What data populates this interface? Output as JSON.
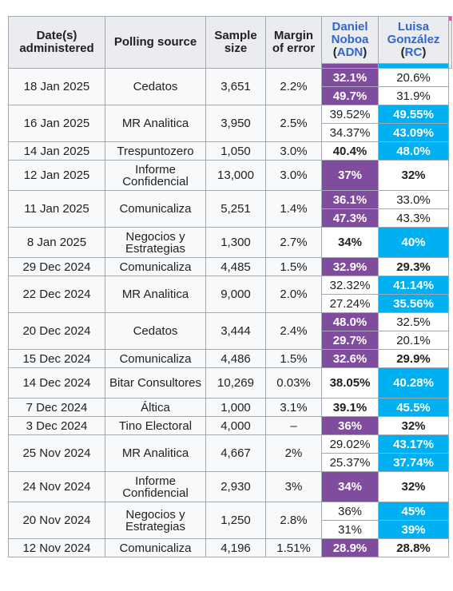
{
  "headers": {
    "date": "Date(s) administered",
    "source": "Polling source",
    "sample": "Sample size",
    "margin": "Margin of error",
    "cand1_name": "Daniel Noboa",
    "cand1_party": "ADN",
    "cand2_name": "Luisa González",
    "cand2_party": "RC"
  },
  "colors": {
    "adn": "#804c9e",
    "rc": "#00b0f0"
  },
  "rows": [
    {
      "date": "18 Jan 2025",
      "source": "Cedatos",
      "sample": "3,651",
      "moe": "2.2%",
      "results": [
        {
          "adn": "32.1%",
          "rc": "20.6%",
          "winner": "adn"
        },
        {
          "adn": "49.7%",
          "rc": "31.9%",
          "winner": "adn"
        }
      ]
    },
    {
      "date": "16 Jan 2025",
      "source": "MR Analitica",
      "sample": "3,950",
      "moe": "2.5%",
      "results": [
        {
          "adn": "39.52%",
          "rc": "49.55%",
          "winner": "rc"
        },
        {
          "adn": "34.37%",
          "rc": "43.09%",
          "winner": "rc"
        }
      ]
    },
    {
      "date": "14 Jan 2025",
      "source": "Trespuntozero",
      "sample": "1,050",
      "moe": "3.0%",
      "results": [
        {
          "adn": "40.4%",
          "rc": "48.0%",
          "winner": "rc"
        }
      ]
    },
    {
      "date": "12 Jan 2025",
      "source": "Informe Confidencial",
      "sample": "13,000",
      "moe": "3.0%",
      "results": [
        {
          "adn": "37%",
          "rc": "32%",
          "winner": "adn"
        }
      ]
    },
    {
      "date": "11 Jan 2025",
      "source": "Comunicaliza",
      "sample": "5,251",
      "moe": "1.4%",
      "results": [
        {
          "adn": "36.1%",
          "rc": "33.0%",
          "winner": "adn"
        },
        {
          "adn": "47.3%",
          "rc": "43.3%",
          "winner": "adn"
        }
      ]
    },
    {
      "date": "8 Jan 2025",
      "source": "Negocios y Estrategias",
      "sample": "1,300",
      "moe": "2.7%",
      "results": [
        {
          "adn": "34%",
          "rc": "40%",
          "winner": "rc"
        }
      ]
    },
    {
      "date": "29 Dec 2024",
      "source": "Comunicaliza",
      "sample": "4,485",
      "moe": "1.5%",
      "results": [
        {
          "adn": "32.9%",
          "rc": "29.3%",
          "winner": "adn"
        }
      ]
    },
    {
      "date": "22 Dec 2024",
      "source": "MR Analitica",
      "sample": "9,000",
      "moe": "2.0%",
      "results": [
        {
          "adn": "32.32%",
          "rc": "41.14%",
          "winner": "rc"
        },
        {
          "adn": "27.24%",
          "rc": "35.56%",
          "winner": "rc"
        }
      ]
    },
    {
      "date": "20 Dec 2024",
      "source": "Cedatos",
      "sample": "3,444",
      "moe": "2.4%",
      "results": [
        {
          "adn": "48.0%",
          "rc": "32.5%",
          "winner": "adn"
        },
        {
          "adn": "29.7%",
          "rc": "20.1%",
          "winner": "adn"
        }
      ]
    },
    {
      "date": "15 Dec 2024",
      "source": "Comunicaliza",
      "sample": "4,486",
      "moe": "1.5%",
      "results": [
        {
          "adn": "32.6%",
          "rc": "29.9%",
          "winner": "adn"
        }
      ]
    },
    {
      "date": "14 Dec 2024",
      "source": "Bitar Consultores",
      "sample": "10,269",
      "moe": "0.03%",
      "results": [
        {
          "adn": "38.05%",
          "rc": "40.28%",
          "winner": "rc"
        }
      ]
    },
    {
      "date": "7 Dec 2024",
      "source": "Áltica",
      "sample": "1,000",
      "moe": "3.1%",
      "results": [
        {
          "adn": "39.1%",
          "rc": "45.5%",
          "winner": "rc"
        }
      ]
    },
    {
      "date": "3 Dec 2024",
      "source": "Tino Electoral",
      "sample": "4,000",
      "moe": "–",
      "results": [
        {
          "adn": "36%",
          "rc": "32%",
          "winner": "adn"
        }
      ]
    },
    {
      "date": "25 Nov 2024",
      "source": "MR Analitica",
      "sample": "4,667",
      "moe": "2%",
      "results": [
        {
          "adn": "29.02%",
          "rc": "43.17%",
          "winner": "rc"
        },
        {
          "adn": "25.37%",
          "rc": "37.74%",
          "winner": "rc"
        }
      ]
    },
    {
      "date": "24 Nov 2024",
      "source": "Informe Confidencial",
      "sample": "2,930",
      "moe": "3%",
      "results": [
        {
          "adn": "34%",
          "rc": "32%",
          "winner": "adn"
        }
      ]
    },
    {
      "date": "20 Nov 2024",
      "source": "Negocios y Estrategias",
      "sample": "1,250",
      "moe": "2.8%",
      "results": [
        {
          "adn": "36%",
          "rc": "45%",
          "winner": "rc"
        },
        {
          "adn": "31%",
          "rc": "39%",
          "winner": "rc"
        }
      ]
    },
    {
      "date": "12 Nov 2024",
      "source": "Comunicaliza",
      "sample": "4,196",
      "moe": "1.51%",
      "results": [
        {
          "adn": "28.9%",
          "rc": "28.8%",
          "winner": "adn"
        }
      ]
    }
  ]
}
